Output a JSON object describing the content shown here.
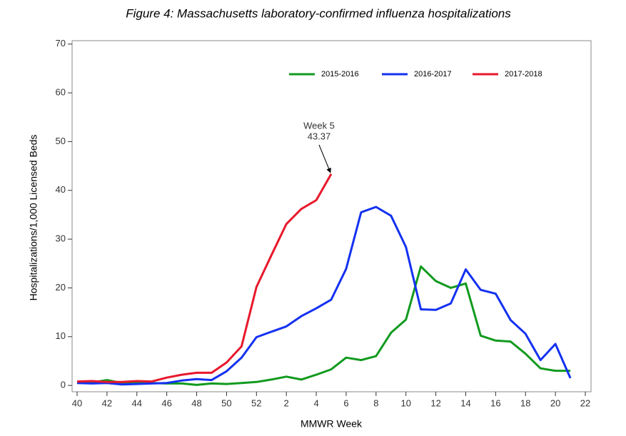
{
  "chart_data": {
    "type": "line",
    "title": "Figure 4: Massachusetts laboratory-confirmed influenza hospitalizations",
    "x_label": "MMWR Week",
    "y_label": "Hospitalizations/1,000 Licensed Beds",
    "annotation": "Week 5",
    "legend_position": "top",
    "categories": [
      "40",
      null,
      "42",
      null,
      "44",
      null,
      "46",
      null,
      "48",
      null,
      "50",
      null,
      "52",
      null,
      "2",
      null,
      "4",
      null,
      "6",
      null,
      "8",
      null,
      "10",
      null,
      "12",
      null,
      "14",
      null,
      "16",
      null,
      "18",
      null,
      "20",
      null,
      "22"
    ],
    "ylim": [
      -1.3,
      70.7
    ],
    "yticks": [
      0,
      10,
      20,
      30,
      40,
      50,
      60,
      70
    ],
    "series": [
      {
        "name": "2015-2016",
        "color": "#119a1e",
        "values": [
          0.6,
          0.6,
          1.1,
          0.5,
          0.5,
          0.5,
          0.4,
          0.4,
          0.1,
          0.4,
          0.3,
          0.5,
          0.7,
          1.2,
          1.8,
          1.2,
          2.2,
          3.3,
          5.7,
          5.2,
          6.0,
          10.8,
          13.5,
          24.4,
          21.4,
          20.0,
          20.9,
          10.2,
          9.2,
          9.0,
          6.5,
          3.5,
          3.0,
          3.0,
          null
        ]
      },
      {
        "name": "2016-2017",
        "color": "#1431f0",
        "values": [
          0.5,
          0.4,
          0.5,
          0.2,
          0.3,
          0.4,
          0.5,
          1.0,
          1.3,
          1.1,
          2.9,
          5.7,
          9.9,
          11.0,
          12.1,
          14.2,
          15.8,
          17.6,
          23.9,
          35.5,
          36.6,
          34.8,
          28.4,
          15.6,
          15.5,
          16.8,
          23.8,
          19.6,
          18.8,
          13.4,
          10.6,
          5.2,
          8.5,
          1.5,
          null
        ]
      },
      {
        "name": "2017-2018",
        "color": "#e8182c",
        "values": [
          0.8,
          0.9,
          0.7,
          0.7,
          0.9,
          0.8,
          1.6,
          2.2,
          2.6,
          2.6,
          4.7,
          8.0,
          20.2,
          26.7,
          33.1,
          36.2,
          38.0,
          43.37,
          null,
          null,
          null,
          null,
          null,
          null,
          null,
          null,
          null,
          null,
          null,
          null,
          null,
          null,
          null,
          null,
          null
        ]
      }
    ]
  }
}
